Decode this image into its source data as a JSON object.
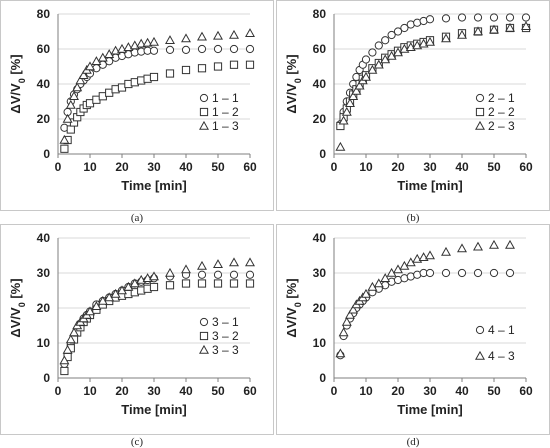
{
  "colors": {
    "marker": "#333333",
    "axis": "#7f7f7f",
    "grid": "#d9d9d9"
  },
  "chart_data": [
    {
      "type": "scatter",
      "panel_label": "(a)",
      "xlabel": "Time [min]",
      "ylabel_main": "ΔV/V",
      "ylabel_sub": "0",
      "ylabel_unit": " [%]",
      "xlim": [
        0,
        60
      ],
      "ylim": [
        0,
        80
      ],
      "xticks": [
        0,
        10,
        20,
        30,
        40,
        50,
        60
      ],
      "yticks": [
        0,
        20,
        40,
        60,
        80
      ],
      "legend_position": "right",
      "series": [
        {
          "name": "1 – 1",
          "marker": "circle",
          "x": [
            2,
            3,
            4,
            5,
            6,
            7,
            8,
            9,
            10,
            12,
            14,
            16,
            18,
            20,
            22,
            24,
            26,
            28,
            30,
            35,
            40,
            45,
            50,
            55,
            60
          ],
          "y": [
            15,
            24,
            30,
            34,
            37,
            40,
            42,
            44,
            46,
            49,
            51,
            53,
            55,
            56,
            57,
            58,
            58.5,
            59,
            59,
            59.5,
            59.5,
            60,
            60,
            60,
            60
          ]
        },
        {
          "name": "1 – 2",
          "marker": "square",
          "x": [
            2,
            3,
            4,
            5,
            6,
            7,
            8,
            9,
            10,
            12,
            14,
            16,
            18,
            20,
            22,
            24,
            26,
            28,
            30,
            35,
            40,
            45,
            50,
            55,
            60
          ],
          "y": [
            3,
            8,
            14,
            18,
            21,
            24,
            26,
            28,
            29,
            31,
            33,
            35,
            37,
            38,
            40,
            41,
            42,
            43,
            44,
            46,
            48,
            49,
            50,
            51,
            51
          ]
        },
        {
          "name": "1 – 3",
          "marker": "triangle",
          "x": [
            2,
            3,
            4,
            5,
            6,
            7,
            8,
            9,
            10,
            12,
            14,
            16,
            18,
            20,
            22,
            24,
            26,
            28,
            30,
            35,
            40,
            45,
            50,
            55,
            60
          ],
          "y": [
            8,
            20,
            28,
            33,
            38,
            42,
            45,
            48,
            50,
            53,
            55,
            57,
            59,
            60,
            61,
            62,
            63,
            63.5,
            64,
            65,
            66,
            67,
            67.5,
            68,
            69
          ]
        }
      ]
    },
    {
      "type": "scatter",
      "panel_label": "(b)",
      "xlabel": "Time [min]",
      "ylabel_main": "ΔV/V",
      "ylabel_sub": "0",
      "ylabel_unit": " [%]",
      "xlim": [
        0,
        60
      ],
      "ylim": [
        0,
        80
      ],
      "xticks": [
        0,
        10,
        20,
        30,
        40,
        50,
        60
      ],
      "yticks": [
        0,
        20,
        40,
        60,
        80
      ],
      "legend_position": "right",
      "series": [
        {
          "name": "2 – 1",
          "marker": "circle",
          "x": [
            2,
            3,
            4,
            5,
            6,
            7,
            8,
            9,
            10,
            12,
            14,
            16,
            18,
            20,
            22,
            24,
            26,
            28,
            30,
            35,
            40,
            45,
            50,
            55,
            60
          ],
          "y": [
            17,
            24,
            30,
            35,
            40,
            44,
            48,
            51,
            54,
            58,
            62,
            65,
            68,
            70,
            72,
            74,
            75,
            76,
            77,
            77.5,
            78,
            78,
            78,
            78,
            78
          ]
        },
        {
          "name": "2 – 2",
          "marker": "square",
          "x": [
            2,
            3,
            4,
            5,
            6,
            7,
            8,
            9,
            10,
            12,
            14,
            16,
            18,
            20,
            22,
            24,
            26,
            28,
            30,
            35,
            40,
            45,
            50,
            55,
            60
          ],
          "y": [
            16,
            21,
            26,
            30,
            34,
            37,
            40,
            43,
            45,
            49,
            52,
            55,
            57,
            59,
            61,
            62,
            63,
            64,
            65,
            67,
            69,
            70,
            71,
            72,
            72
          ]
        },
        {
          "name": "2 – 3",
          "marker": "triangle",
          "x": [
            2,
            3,
            4,
            5,
            6,
            7,
            8,
            9,
            10,
            12,
            14,
            16,
            18,
            20,
            22,
            24,
            26,
            28,
            30,
            35,
            40,
            45,
            50,
            55,
            60
          ],
          "y": [
            4,
            19,
            24,
            29,
            33,
            36,
            39,
            42,
            44,
            48,
            51,
            54,
            56,
            58,
            60,
            61,
            62,
            63,
            64,
            66,
            68,
            70,
            71,
            72,
            73
          ]
        }
      ]
    },
    {
      "type": "scatter",
      "panel_label": "(c)",
      "xlabel": "Time [min]",
      "ylabel_main": "ΔV/V",
      "ylabel_sub": "0",
      "ylabel_unit": " [%]",
      "xlim": [
        0,
        60
      ],
      "ylim": [
        0,
        40
      ],
      "xticks": [
        0,
        10,
        20,
        30,
        40,
        50,
        60
      ],
      "yticks": [
        0,
        10,
        20,
        30,
        40
      ],
      "legend_position": "right",
      "series": [
        {
          "name": "3 – 1",
          "marker": "circle",
          "x": [
            2,
            3,
            4,
            5,
            6,
            7,
            8,
            9,
            10,
            12,
            14,
            16,
            18,
            20,
            22,
            24,
            26,
            28,
            30,
            35,
            40,
            45,
            50,
            55,
            60
          ],
          "y": [
            4,
            7,
            10,
            12,
            14,
            15.5,
            17,
            18,
            19,
            21,
            22,
            23,
            24,
            25,
            26,
            27,
            27.5,
            28,
            28.5,
            29,
            29.5,
            29.5,
            29.5,
            29.5,
            29.5
          ]
        },
        {
          "name": "3 – 2",
          "marker": "square",
          "x": [
            2,
            3,
            4,
            5,
            6,
            7,
            8,
            9,
            10,
            12,
            14,
            16,
            18,
            20,
            22,
            24,
            26,
            28,
            30,
            35,
            40,
            45,
            50,
            55,
            60
          ],
          "y": [
            2,
            6,
            8.5,
            11,
            13,
            14.5,
            16,
            17,
            18,
            19.5,
            21,
            22,
            23,
            23.5,
            24,
            24.5,
            25,
            25.5,
            26,
            26.5,
            27,
            27,
            27,
            27,
            27
          ]
        },
        {
          "name": "3 – 3",
          "marker": "triangle",
          "x": [
            2,
            3,
            4,
            5,
            6,
            7,
            8,
            9,
            10,
            12,
            14,
            16,
            18,
            20,
            22,
            24,
            26,
            28,
            30,
            35,
            40,
            45,
            50,
            55,
            60
          ],
          "y": [
            5,
            8,
            11,
            13,
            15,
            16,
            17,
            18,
            19,
            20.5,
            22,
            23,
            24,
            25,
            26,
            27,
            28,
            28.5,
            29,
            30,
            31,
            32,
            32.5,
            33,
            33
          ]
        }
      ]
    },
    {
      "type": "scatter",
      "panel_label": "(d)",
      "xlabel": "Time [min]",
      "ylabel_main": "ΔV/V",
      "ylabel_sub": "0",
      "ylabel_unit": " [%]",
      "xlim": [
        0,
        60
      ],
      "ylim": [
        0,
        40
      ],
      "xticks": [
        0,
        10,
        20,
        30,
        40,
        50,
        60
      ],
      "yticks": [
        0,
        10,
        20,
        30,
        40
      ],
      "legend_position": "right",
      "series": [
        {
          "name": "4 – 1",
          "marker": "circle",
          "x": [
            2,
            3,
            4,
            5,
            6,
            7,
            8,
            9,
            10,
            12,
            14,
            16,
            18,
            20,
            22,
            24,
            26,
            28,
            30,
            35,
            40,
            45,
            50,
            55
          ],
          "y": [
            6.5,
            12,
            15,
            17,
            18.5,
            20,
            21,
            22,
            23,
            24.5,
            25.5,
            26.5,
            27.5,
            28,
            28.5,
            29,
            29.5,
            30,
            30,
            30,
            30,
            30,
            30,
            30
          ]
        },
        {
          "name": "4 – 3",
          "marker": "triangle",
          "x": [
            2,
            3,
            4,
            5,
            6,
            7,
            8,
            9,
            10,
            12,
            14,
            16,
            18,
            20,
            22,
            24,
            26,
            28,
            30,
            35,
            40,
            45,
            50,
            55
          ],
          "y": [
            7,
            13,
            16,
            18,
            19.5,
            21,
            22,
            23,
            24,
            26,
            27,
            28.5,
            30,
            31,
            32,
            33,
            34,
            34.5,
            35,
            36,
            37,
            37.5,
            38,
            38
          ]
        }
      ]
    }
  ]
}
